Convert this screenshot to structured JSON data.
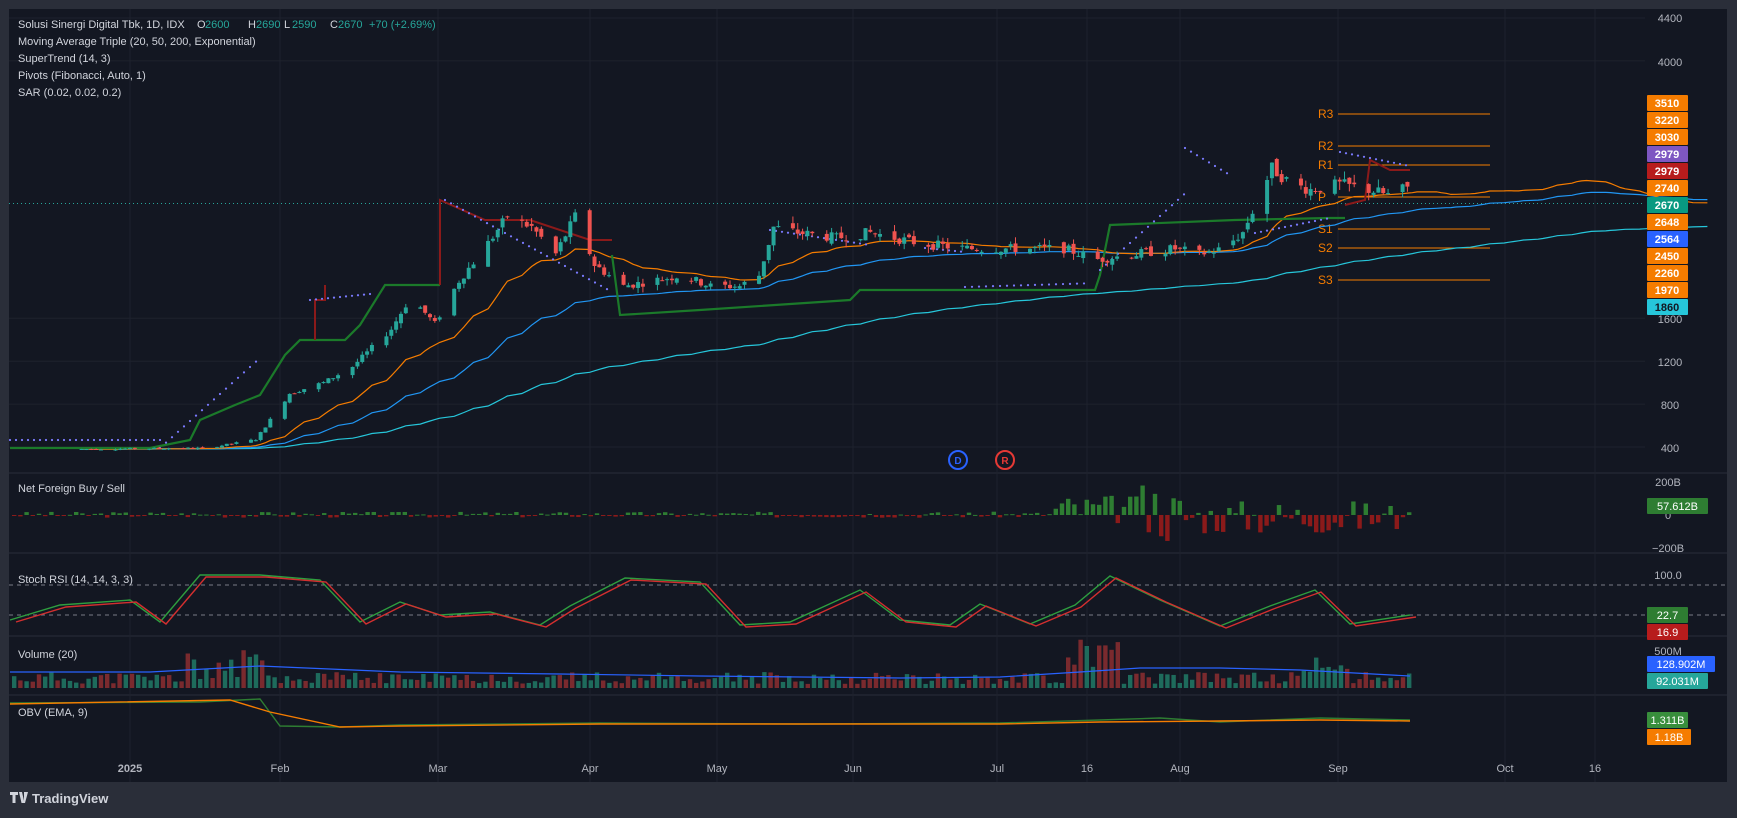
{
  "header": {
    "symbol": "Solusi Sinergi Digital Tbk, 1D, IDX",
    "ohlc": [
      {
        "k": "O",
        "v": "2600"
      },
      {
        "k": "H",
        "v": "2690"
      },
      {
        "k": "L",
        "v": "2590"
      },
      {
        "k": "C",
        "v": "2670"
      }
    ],
    "change": "+70 (+2.69%)"
  },
  "indicators": [
    "Moving Average Triple (20, 50, 200, Exponential)",
    "SuperTrend (14, 3)",
    "Pivots (Fibonacci, Auto, 1)",
    "SAR (0.02, 0.02, 0.2)"
  ],
  "pane_titles": {
    "foreign": "Net Foreign Buy / Sell",
    "stoch": "Stoch RSI (14, 14, 3, 3)",
    "volume": "Volume (20)",
    "obv": "OBV (EMA, 9)"
  },
  "price_axis": [
    "4400",
    "4000",
    "1600",
    "1200",
    "800",
    "400"
  ],
  "foreign_axis": [
    "200B",
    "0",
    "−200B"
  ],
  "stoch_axis": [
    "100.0"
  ],
  "volume_axis": [
    "500M"
  ],
  "pivot_labels": [
    "R3",
    "R2",
    "R1",
    "P",
    "S1",
    "S2",
    "S3"
  ],
  "price_badges": [
    {
      "text": "3510",
      "color": "#f57c00",
      "fg": "#ffffff"
    },
    {
      "text": "3220",
      "color": "#f57c00",
      "fg": "#ffffff"
    },
    {
      "text": "3030",
      "color": "#f57c00",
      "fg": "#ffffff"
    },
    {
      "text": "2979",
      "color": "#7e57c2",
      "fg": "#ffffff"
    },
    {
      "text": "2979",
      "color": "#b71c1c",
      "fg": "#ffffff"
    },
    {
      "text": "2740",
      "color": "#f57c00",
      "fg": "#ffffff"
    },
    {
      "text": "2670",
      "color": "#089981",
      "fg": "#ffffff"
    },
    {
      "text": "2648",
      "color": "#f57c00",
      "fg": "#ffffff"
    },
    {
      "text": "2564",
      "color": "#2962ff",
      "fg": "#ffffff"
    },
    {
      "text": "2450",
      "color": "#f57c00",
      "fg": "#ffffff"
    },
    {
      "text": "2260",
      "color": "#f57c00",
      "fg": "#ffffff"
    },
    {
      "text": "1970",
      "color": "#f57c00",
      "fg": "#ffffff"
    },
    {
      "text": "1860",
      "color": "#26c6da",
      "fg": "#131722"
    }
  ],
  "pane_badges": [
    {
      "text": "57.612B",
      "color": "#2e7d32"
    },
    {
      "text": "22.7",
      "color": "#2e7d32"
    },
    {
      "text": "16.9",
      "color": "#b71c1c"
    },
    {
      "text": "128.902M",
      "color": "#2962ff"
    },
    {
      "text": "92.031M",
      "color": "#26a69a"
    },
    {
      "text": "1.311B",
      "color": "#388e3c"
    },
    {
      "text": "1.18B",
      "color": "#f57c00"
    }
  ],
  "events": [
    "D",
    "R"
  ],
  "time_axis": [
    "2025",
    "Feb",
    "Mar",
    "Apr",
    "May",
    "Jun",
    "Jul",
    "16",
    "Aug",
    "Sep",
    "Oct",
    "16"
  ],
  "branding": "TradingView",
  "colors": {
    "up": "#26a69a",
    "down": "#ef5350",
    "ema20": "#f57c00",
    "ema50": "#2196f3",
    "ema200": "#26c6da",
    "supertrend_up": "#1b7a2a",
    "supertrend_down": "#8b1a1a",
    "sar": "#7b7bff",
    "pivot": "#f57c00",
    "background": "#131722",
    "frame": "#2a2e39"
  },
  "chart_data": {
    "type": "candlestick",
    "title": "Solusi Sinergi Digital Tbk, 1D, IDX",
    "ylim": [
      250,
      4500
    ],
    "ohlc_last": {
      "open": 2600,
      "high": 2690,
      "low": 2590,
      "close": 2670
    },
    "monthly_path": [
      {
        "period": "Dec 2024",
        "close": 380
      },
      {
        "period": "Jan 2025",
        "close": 400
      },
      {
        "period": "mid Jan 2025",
        "close": 900
      },
      {
        "period": "Feb 2025",
        "close": 1650
      },
      {
        "period": "late Feb 2025",
        "close": 2500
      },
      {
        "period": "Mar 2025",
        "close": 2250
      },
      {
        "period": "Apr 2025",
        "close": 1850
      },
      {
        "period": "early Apr 2025",
        "close": 2500
      },
      {
        "period": "May 2025",
        "close": 2300
      },
      {
        "period": "Jun 2025",
        "close": 2200
      },
      {
        "period": "Jul 2025",
        "close": 2200
      },
      {
        "period": "mid Jul 2025",
        "close": 2900
      },
      {
        "period": "Aug 2025",
        "close": 2800
      },
      {
        "period": "Sep 2025",
        "close": 2670
      }
    ],
    "pivots": {
      "R3": 3510,
      "R2": 3220,
      "R1": 3030,
      "P": 2740,
      "S1": 2450,
      "S2": 2260,
      "S3": 1970
    },
    "moving_averages": {
      "ema20": 2648,
      "ema50": 2564,
      "ema200": 1860
    },
    "supertrend": 2979,
    "net_foreign_last": "57.612B",
    "stoch_rsi": {
      "k": 22.7,
      "d": 16.9
    },
    "volume": {
      "last": "92.031M",
      "ma20": "128.902M"
    },
    "obv": {
      "value": "1.311B",
      "ema9": "1.18B"
    }
  }
}
